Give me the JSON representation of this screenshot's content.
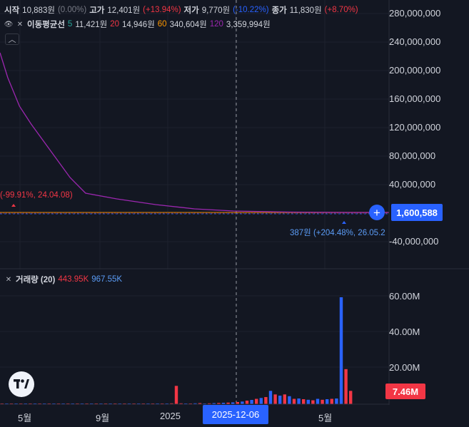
{
  "ohlc": {
    "open_label": "시작",
    "open_value": "10,883원",
    "open_change": "(0.00%)",
    "high_label": "고가",
    "high_value": "12,401원",
    "high_change": "(+13.94%)",
    "low_label": "저가",
    "low_value": "9,770원",
    "low_change": "(-10.22%)",
    "close_label": "종가",
    "close_value": "11,830원",
    "close_change": "(+8.70%)"
  },
  "ma_legend": {
    "label": "이동평균선",
    "p5": "5",
    "v5": "11,421원",
    "p20": "20",
    "v20": "14,946원",
    "p60": "60",
    "v60": "340,604원",
    "p120": "120",
    "v120": "3,359,994원"
  },
  "volume_legend": {
    "label": "거래량 (20)",
    "v1": "443.95K",
    "v2": "967.55K"
  },
  "price_axis": [
    "280,000,000",
    "240,000,000",
    "200,000,000",
    "160,000,000",
    "120,000,000",
    "80,000,000",
    "40,000,000",
    "-40,000,000"
  ],
  "last_price": "1,600,588",
  "volume_axis": [
    "60.00M",
    "40.00M",
    "20.00M"
  ],
  "last_volume": "7.46M",
  "annotations": {
    "low": "(-99.91%, 24.04.08)",
    "high": "387원 (+204.48%, 26.05.2"
  },
  "time_axis": [
    "5월",
    "9월",
    "2025",
    "5월"
  ],
  "crosshair_date": "2025-12-06",
  "colors": {
    "background": "#131722",
    "up": "#f23645",
    "down": "#2962ff",
    "ma120": "#9c27b0",
    "ma60": "#ff9800"
  },
  "chart_data": {
    "type": "bar",
    "price_ylim": [
      -60000000,
      290000000
    ],
    "ma120_series": [
      {
        "t": 0.0,
        "v": 225000000
      },
      {
        "t": 0.02,
        "v": 190000000
      },
      {
        "t": 0.05,
        "v": 150000000
      },
      {
        "t": 0.08,
        "v": 125000000
      },
      {
        "t": 0.14,
        "v": 80000000
      },
      {
        "t": 0.18,
        "v": 50000000
      },
      {
        "t": 0.22,
        "v": 28000000
      },
      {
        "t": 0.3,
        "v": 20000000
      },
      {
        "t": 0.4,
        "v": 12000000
      },
      {
        "t": 0.5,
        "v": 6000000
      },
      {
        "t": 0.6,
        "v": 3000000
      },
      {
        "t": 0.75,
        "v": 1500000
      },
      {
        "t": 0.9,
        "v": 1000000
      },
      {
        "t": 1.0,
        "v": 1000000
      }
    ],
    "volume_ylim": [
      0,
      70000000
    ],
    "volume_bars": [
      0.3,
      0.2,
      0.3,
      0.2,
      0.3,
      0.2,
      0.3,
      0.2,
      0.3,
      0.2,
      0.3,
      0.2,
      0.3,
      0.2,
      0.3,
      0.2,
      0.3,
      0.2,
      0.3,
      0.2,
      0.3,
      0.2,
      0.3,
      0.2,
      0.3,
      0.2,
      0.3,
      0.2,
      0.3,
      0.2,
      0.4,
      0.3,
      0.2,
      0.3,
      0.2,
      0.3,
      0.2,
      0.3,
      0.2,
      0.3,
      0.2,
      0.3,
      0.2,
      0.3,
      0.2,
      0.3,
      0.2,
      0.3,
      0.5,
      10.3,
      0.5,
      0.4,
      0.3,
      0.5,
      0.6,
      0.4,
      0.5,
      0.6,
      0.7,
      0.8,
      0.9,
      1.0,
      1.2,
      1.5,
      2.0,
      2.4,
      3.0,
      3.5,
      4.0,
      7.5,
      5.5,
      4.8,
      5.5,
      4.5,
      3.0,
      3.2,
      2.8,
      2.5,
      2.2,
      3.0,
      2.5,
      2.8,
      3.0,
      3.2,
      60.0,
      19.7,
      7.46
    ],
    "volume_colors": "alternating"
  }
}
